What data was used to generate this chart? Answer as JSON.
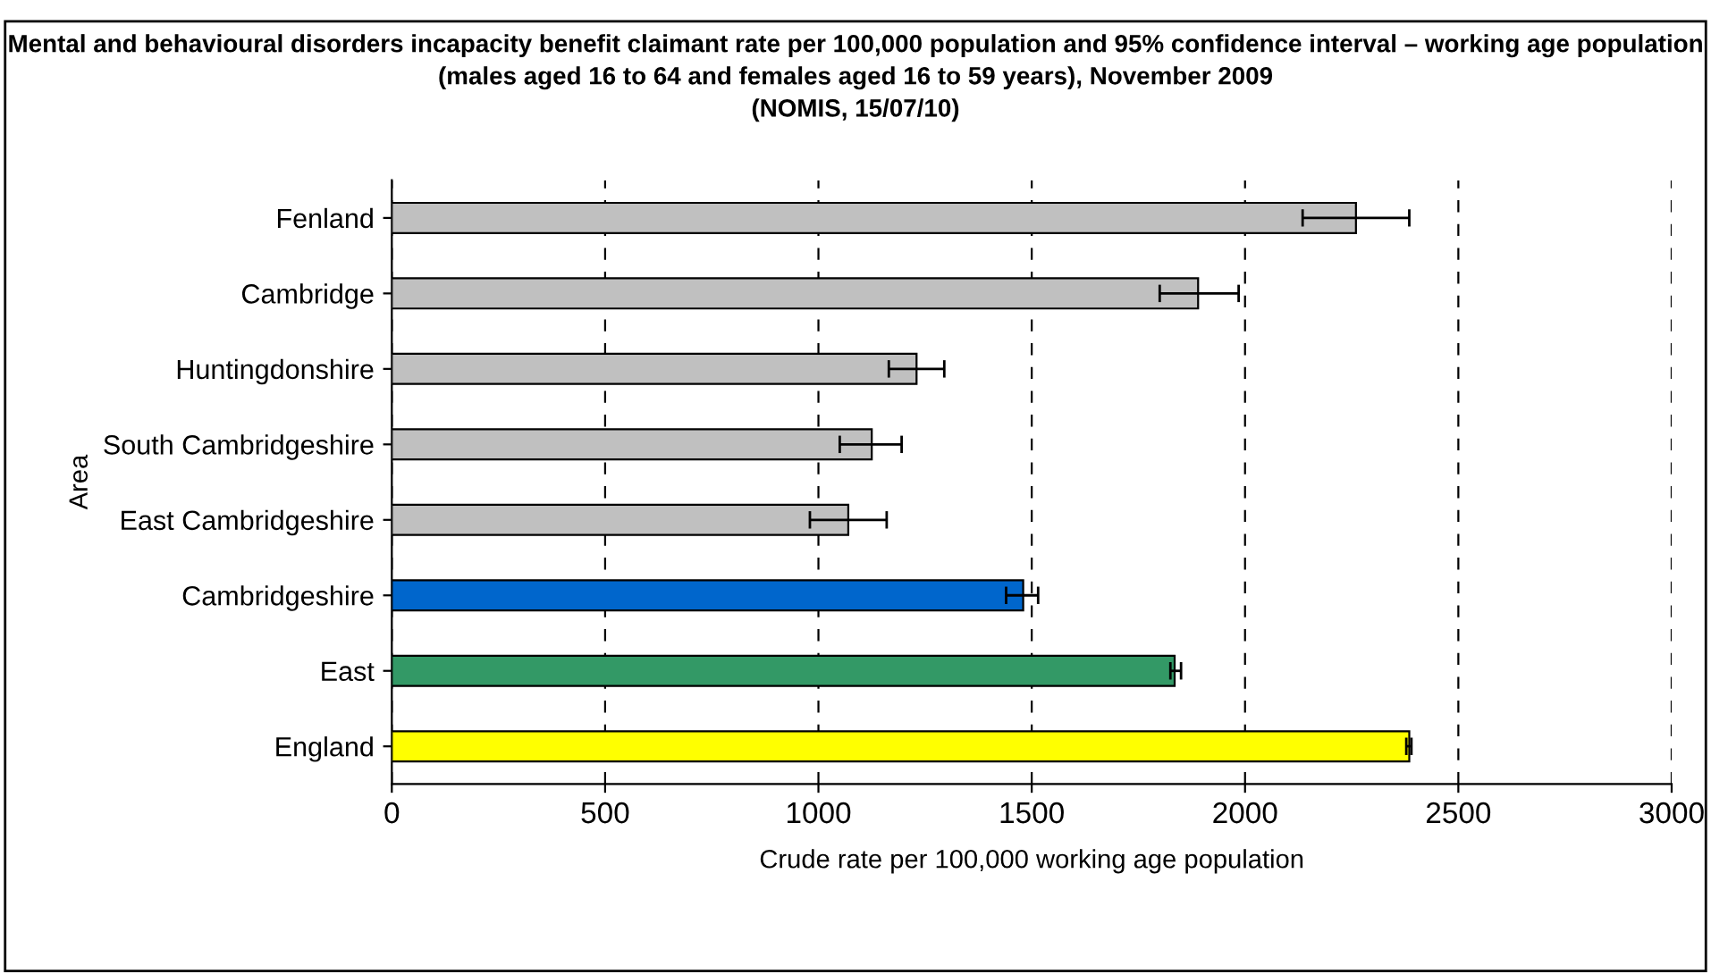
{
  "chart_data": {
    "type": "bar",
    "orientation": "horizontal",
    "title": "Mental and behavioural disorders incapacity benefit claimant rate per 100,000 population and 95% confidence interval – working age population (males aged 16 to 64 and females aged 16 to 59 years), November 2009\n(NOMIS, 15/07/10)",
    "xlabel": "Crude rate per 100,000 working age population",
    "ylabel": "Area",
    "categories": [
      "Fenland",
      "Cambridge",
      "Huntingdonshire",
      "South Cambridgeshire",
      "East Cambridgeshire",
      "Cambridgeshire",
      "East",
      "England"
    ],
    "values": [
      2260,
      1890,
      1230,
      1125,
      1070,
      1480,
      1835,
      2385
    ],
    "errors": [
      [
        2135,
        2385
      ],
      [
        1800,
        1985
      ],
      [
        1165,
        1295
      ],
      [
        1050,
        1195
      ],
      [
        980,
        1160
      ],
      [
        1440,
        1515
      ],
      [
        1825,
        1850
      ],
      [
        2378,
        2390
      ]
    ],
    "colors": [
      "#c0c0c0",
      "#c0c0c0",
      "#c0c0c0",
      "#c0c0c0",
      "#c0c0c0",
      "#0066cc",
      "#339966",
      "#ffff00"
    ],
    "xlim": [
      0,
      3000
    ],
    "xticks": [
      0,
      500,
      1000,
      1500,
      2000,
      2500,
      3000
    ],
    "grid": "x",
    "line_style": "dashed"
  }
}
